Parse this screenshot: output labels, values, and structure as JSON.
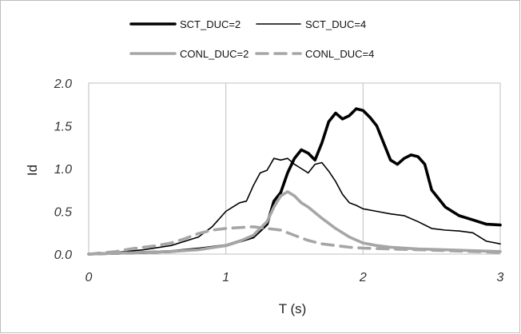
{
  "chart_data": {
    "type": "line",
    "xlabel": "T (s)",
    "ylabel": "Id",
    "xlim": [
      0,
      3
    ],
    "ylim": [
      0,
      2
    ],
    "x_ticks": [
      {
        "value": 0,
        "label": "0"
      },
      {
        "value": 1,
        "label": "1"
      },
      {
        "value": 2,
        "label": "2"
      },
      {
        "value": 3,
        "label": "3"
      }
    ],
    "y_ticks": [
      {
        "value": 0,
        "label": "0.0"
      },
      {
        "value": 0.5,
        "label": "0.5"
      },
      {
        "value": 1.0,
        "label": "1.0"
      },
      {
        "value": 1.5,
        "label": "1.5"
      },
      {
        "value": 2.0,
        "label": "2.0"
      }
    ],
    "grid": "vertical",
    "legend_position": "top",
    "series": [
      {
        "name": "SCT_DUC=2",
        "color": "#000000",
        "style": "solid",
        "weight": "heavy",
        "x": [
          0,
          0.2,
          0.4,
          0.6,
          0.8,
          1.0,
          1.1,
          1.2,
          1.3,
          1.35,
          1.4,
          1.45,
          1.5,
          1.55,
          1.6,
          1.65,
          1.7,
          1.75,
          1.8,
          1.85,
          1.9,
          1.95,
          2.0,
          2.05,
          2.1,
          2.15,
          2.2,
          2.25,
          2.3,
          2.35,
          2.4,
          2.45,
          2.5,
          2.6,
          2.7,
          2.8,
          2.9,
          3.0
        ],
        "values": [
          0,
          0.01,
          0.02,
          0.03,
          0.06,
          0.1,
          0.15,
          0.2,
          0.35,
          0.62,
          0.72,
          0.95,
          1.12,
          1.22,
          1.18,
          1.1,
          1.3,
          1.55,
          1.65,
          1.58,
          1.62,
          1.7,
          1.68,
          1.6,
          1.5,
          1.3,
          1.1,
          1.05,
          1.12,
          1.16,
          1.14,
          1.05,
          0.75,
          0.55,
          0.45,
          0.4,
          0.35,
          0.34
        ]
      },
      {
        "name": "SCT_DUC=4",
        "color": "#000000",
        "style": "solid",
        "weight": "thin",
        "x": [
          0,
          0.2,
          0.4,
          0.6,
          0.8,
          0.9,
          1.0,
          1.05,
          1.1,
          1.15,
          1.2,
          1.25,
          1.3,
          1.35,
          1.4,
          1.45,
          1.5,
          1.55,
          1.6,
          1.65,
          1.7,
          1.75,
          1.8,
          1.85,
          1.9,
          1.95,
          2.0,
          2.1,
          2.2,
          2.3,
          2.4,
          2.5,
          2.6,
          2.7,
          2.8,
          2.9,
          3.0
        ],
        "values": [
          0,
          0.02,
          0.05,
          0.1,
          0.2,
          0.32,
          0.5,
          0.55,
          0.6,
          0.62,
          0.8,
          0.95,
          0.98,
          1.12,
          1.1,
          1.12,
          1.05,
          1.0,
          0.95,
          1.05,
          1.07,
          0.97,
          0.85,
          0.7,
          0.6,
          0.57,
          0.53,
          0.5,
          0.47,
          0.45,
          0.38,
          0.3,
          0.28,
          0.27,
          0.25,
          0.15,
          0.12
        ]
      },
      {
        "name": "CONL_DUC=2",
        "color": "#a6a6a6",
        "style": "solid",
        "weight": "heavy",
        "x": [
          0,
          0.2,
          0.4,
          0.6,
          0.8,
          1.0,
          1.1,
          1.2,
          1.3,
          1.35,
          1.4,
          1.45,
          1.5,
          1.55,
          1.6,
          1.7,
          1.8,
          1.9,
          2.0,
          2.1,
          2.2,
          2.4,
          2.6,
          2.8,
          3.0
        ],
        "values": [
          0,
          0.01,
          0.02,
          0.03,
          0.05,
          0.1,
          0.15,
          0.22,
          0.38,
          0.55,
          0.68,
          0.73,
          0.68,
          0.6,
          0.55,
          0.42,
          0.3,
          0.2,
          0.13,
          0.1,
          0.08,
          0.06,
          0.05,
          0.04,
          0.03
        ]
      },
      {
        "name": "CONL_DUC=4",
        "color": "#a6a6a6",
        "style": "dashed",
        "weight": "heavy",
        "x": [
          0,
          0.2,
          0.3,
          0.4,
          0.5,
          0.6,
          0.7,
          0.8,
          0.9,
          1.0,
          1.1,
          1.2,
          1.3,
          1.4,
          1.5,
          1.6,
          1.7,
          1.8,
          1.9,
          2.0,
          2.2,
          2.4,
          2.6,
          2.8,
          3.0
        ],
        "values": [
          0,
          0.03,
          0.06,
          0.08,
          0.1,
          0.13,
          0.18,
          0.24,
          0.28,
          0.3,
          0.31,
          0.32,
          0.3,
          0.28,
          0.22,
          0.16,
          0.12,
          0.1,
          0.08,
          0.07,
          0.06,
          0.05,
          0.04,
          0.03,
          0.02
        ]
      }
    ]
  }
}
